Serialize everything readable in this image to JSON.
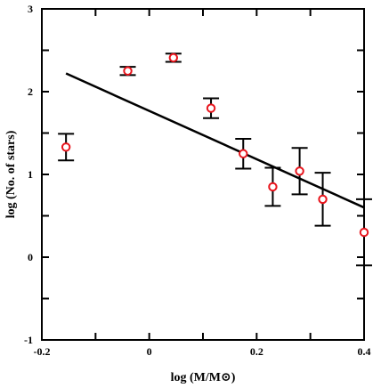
{
  "chart_data": {
    "type": "scatter",
    "xlabel": "log (M/M⊙)",
    "ylabel": "log (No. of stars)",
    "xlim": [
      -0.2,
      0.4
    ],
    "ylim": [
      -1,
      3
    ],
    "x_ticks": [
      -0.2,
      0,
      0.2,
      0.4
    ],
    "x_tick_labels": [
      "-0.2",
      "0",
      "0.2",
      "0.4"
    ],
    "y_ticks": [
      -1,
      0,
      1,
      2,
      3
    ],
    "y_tick_labels": [
      "-1",
      "0",
      "1",
      "2",
      "3"
    ],
    "grid": false,
    "legend": "none",
    "marker_color": "#e8141c",
    "errorbar_color": "#000000",
    "points": [
      {
        "x": -0.155,
        "y": 1.33,
        "err_low": 0.16,
        "err_high": 0.16
      },
      {
        "x": -0.04,
        "y": 2.25,
        "err_low": 0.05,
        "err_high": 0.05
      },
      {
        "x": 0.045,
        "y": 2.41,
        "err_low": 0.05,
        "err_high": 0.05
      },
      {
        "x": 0.115,
        "y": 1.8,
        "err_low": 0.12,
        "err_high": 0.12
      },
      {
        "x": 0.175,
        "y": 1.25,
        "err_low": 0.18,
        "err_high": 0.18
      },
      {
        "x": 0.23,
        "y": 0.85,
        "err_low": 0.23,
        "err_high": 0.23
      },
      {
        "x": 0.28,
        "y": 1.04,
        "err_low": 0.28,
        "err_high": 0.28
      },
      {
        "x": 0.323,
        "y": 0.7,
        "err_low": 0.32,
        "err_high": 0.32
      },
      {
        "x": 0.4,
        "y": 0.3,
        "err_low": 0.4,
        "err_high": 0.4
      }
    ],
    "fit_line": {
      "x": [
        -0.155,
        0.4
      ],
      "y": [
        2.22,
        0.6
      ]
    }
  }
}
